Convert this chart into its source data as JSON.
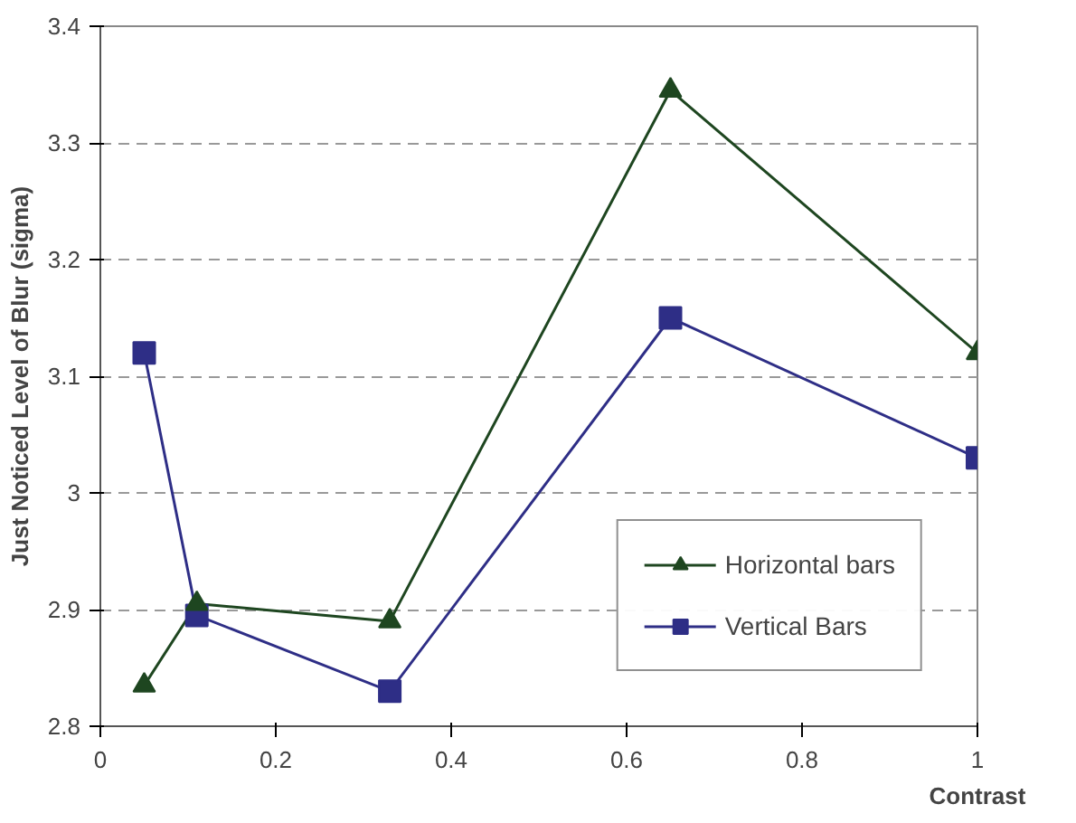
{
  "chart_data": {
    "type": "line",
    "xlabel": "Contrast",
    "ylabel": "Just Noticed Level of Blur (sigma)",
    "x": [
      0.05,
      0.11,
      0.33,
      0.65,
      1.0
    ],
    "series": [
      {
        "name": "Horizontal bars",
        "color": "#1e4620",
        "marker": "triangle",
        "values": [
          2.835,
          2.905,
          2.89,
          3.345,
          3.12
        ]
      },
      {
        "name": "Vertical Bars",
        "color": "#2e2e86",
        "marker": "square",
        "values": [
          3.12,
          2.895,
          2.83,
          3.15,
          3.03
        ]
      }
    ],
    "xlim": [
      0,
      1
    ],
    "xticks": [
      0,
      0.2,
      0.4,
      0.6,
      0.8,
      1
    ],
    "ylim": [
      2.8,
      3.4
    ],
    "yticks": [
      2.8,
      2.9,
      3,
      3.1,
      3.2,
      3.3,
      3.4
    ],
    "grid": "y",
    "legend": "bottom right",
    "line_style": "solid"
  }
}
